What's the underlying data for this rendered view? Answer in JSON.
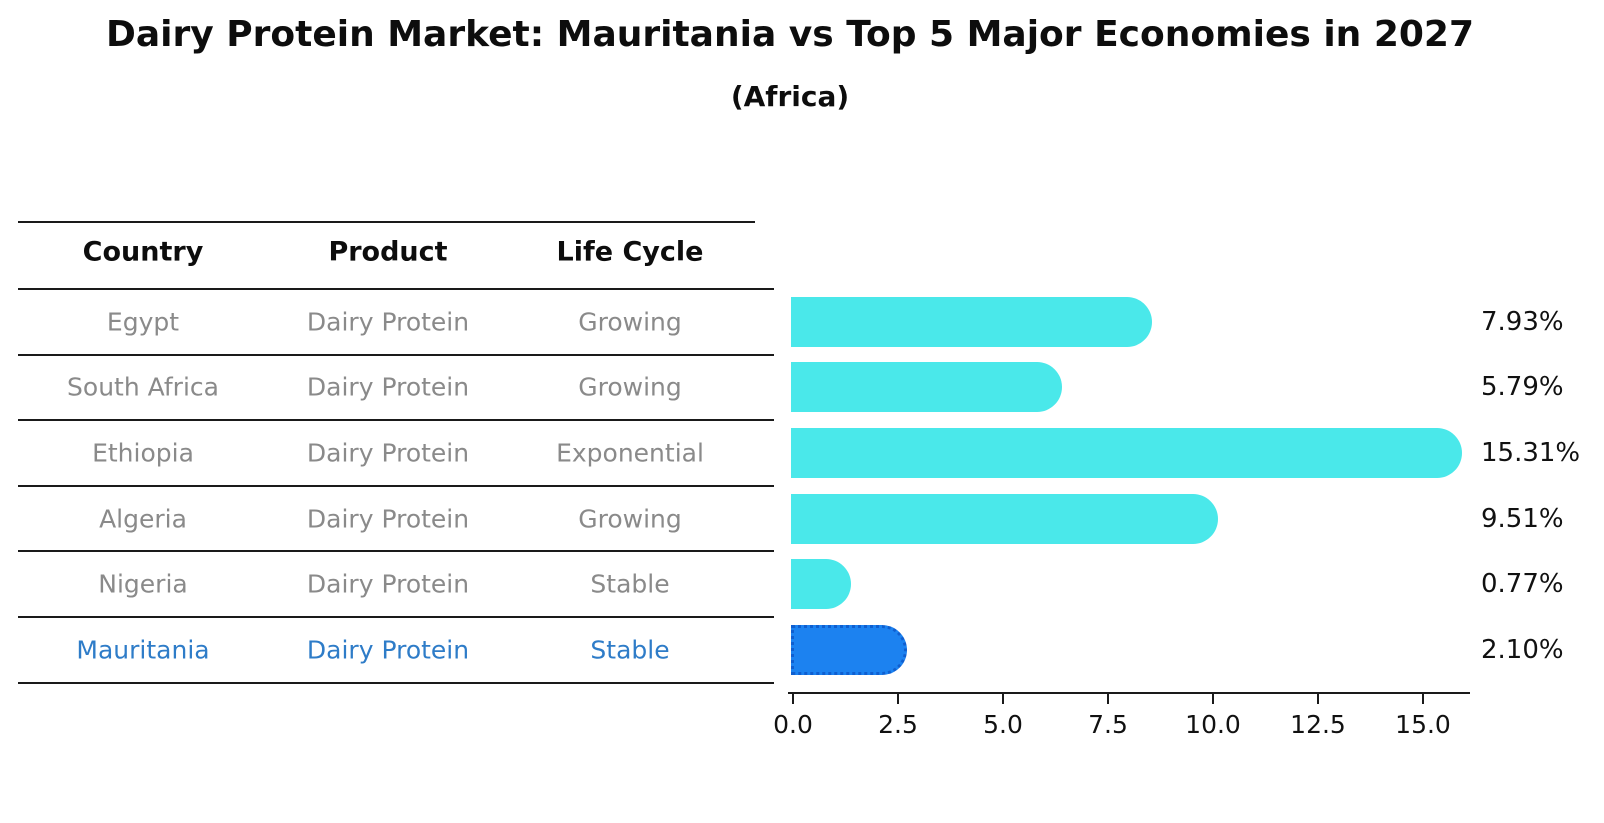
{
  "header": {
    "title": "Dairy Protein Market: Mauritania vs Top 5 Major Economies in 2027",
    "subtitle": "(Africa)"
  },
  "table": {
    "columns": [
      "Country",
      "Product",
      "Life Cycle"
    ],
    "rows": [
      {
        "country": "Egypt",
        "product": "Dairy Protein",
        "life_cycle": "Growing",
        "highlight": false
      },
      {
        "country": "South Africa",
        "product": "Dairy Protein",
        "life_cycle": "Growing",
        "highlight": false
      },
      {
        "country": "Ethiopia",
        "product": "Dairy Protein",
        "life_cycle": "Exponential",
        "highlight": false
      },
      {
        "country": "Algeria",
        "product": "Dairy Protein",
        "life_cycle": "Growing",
        "highlight": false
      },
      {
        "country": "Nigeria",
        "product": "Dairy Protein",
        "life_cycle": "Stable",
        "highlight": false
      },
      {
        "country": "Mauritania",
        "product": "Dairy Protein",
        "life_cycle": "Stable",
        "highlight": true
      }
    ]
  },
  "chart_data": {
    "type": "bar",
    "orientation": "horizontal",
    "title": "Dairy Protein Market: Mauritania vs Top 5 Major Economies in 2027",
    "subtitle": "(Africa)",
    "categories": [
      "Egypt",
      "South Africa",
      "Ethiopia",
      "Algeria",
      "Nigeria",
      "Mauritania"
    ],
    "values": [
      7.93,
      5.79,
      15.31,
      9.51,
      0.77,
      2.1
    ],
    "value_labels": [
      "7.93%",
      "5.79%",
      "15.31%",
      "9.51%",
      "0.77%",
      "2.10%"
    ],
    "xlabel": "",
    "ylabel": "",
    "xlim": [
      0,
      16.2
    ],
    "xticks": [
      "0.0",
      "2.5",
      "5.0",
      "7.5",
      "10.0",
      "12.5",
      "15.0"
    ],
    "grid": false,
    "legend": false,
    "bar_color": "#4AE8EA",
    "highlight_bar_color": "#1C82F0",
    "highlight_index": 5
  },
  "colors": {
    "bar_cyan": "#4AE8EA",
    "bar_blue": "#1C82F0",
    "bar_blue_edge": "#0f5fd0",
    "highlight_text": "#2E7CC8",
    "table_text": "#8a8a8a",
    "heading_text": "#0d0d0d",
    "axis": "#1a1a1a"
  }
}
